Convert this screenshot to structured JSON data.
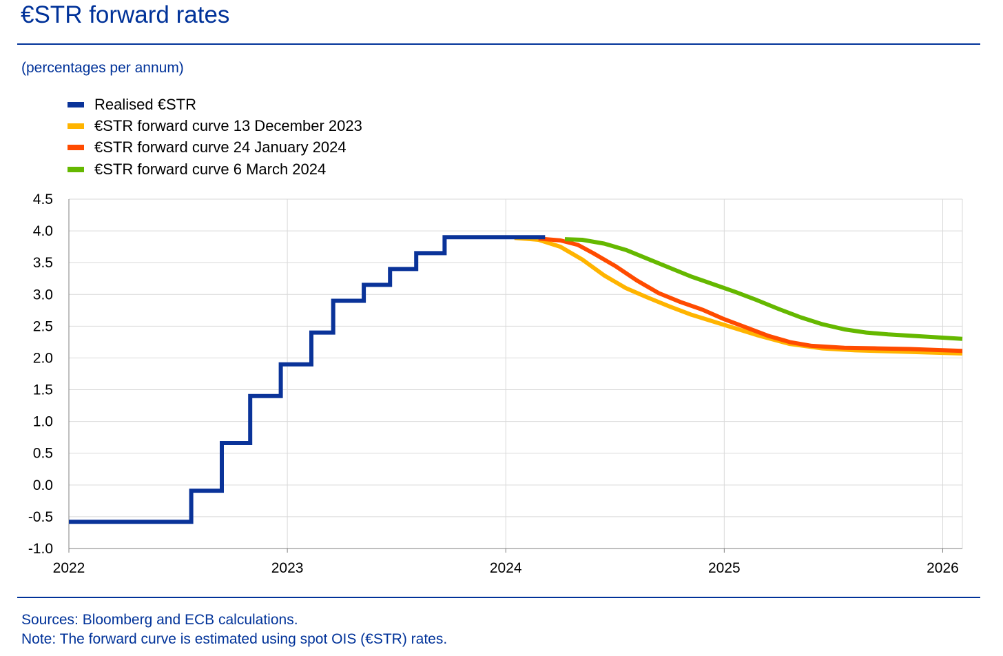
{
  "title": "€STR forward rates",
  "subtitle": "(percentages per annum)",
  "footer": {
    "sources": "Sources: Bloomberg and ECB calculations.",
    "note": "Note: The forward curve is estimated using spot OIS (€STR) rates."
  },
  "legend": [
    {
      "label": "Realised €STR",
      "color": "#0a3399"
    },
    {
      "label": "€STR forward curve 13 December 2023",
      "color": "#ffb400"
    },
    {
      "label": "€STR forward curve 24 January 2024",
      "color": "#ff4b00"
    },
    {
      "label": "€STR forward curve 6 March 2024",
      "color": "#65b800"
    }
  ],
  "chart_data": {
    "type": "line",
    "xlim": [
      2022.0,
      2026.09
    ],
    "ylim": [
      -1.0,
      4.5
    ],
    "xticks": [
      2022,
      2023,
      2024,
      2025,
      2026
    ],
    "xtick_labels": [
      "2022",
      "2023",
      "2024",
      "2025",
      "2026"
    ],
    "yticks": [
      -1.0,
      -0.5,
      0.0,
      0.5,
      1.0,
      1.5,
      2.0,
      2.5,
      3.0,
      3.5,
      4.0,
      4.5
    ],
    "ytick_labels": [
      "-1.0",
      "-0.5",
      "0.0",
      "0.5",
      "1.0",
      "1.5",
      "2.0",
      "2.5",
      "3.0",
      "3.5",
      "4.0",
      "4.5"
    ],
    "grid": true,
    "series": [
      {
        "name": "Realised €STR",
        "color": "#0a3399",
        "step": true,
        "points": [
          [
            2022.0,
            -0.58
          ],
          [
            2022.56,
            -0.58
          ],
          [
            2022.56,
            -0.09
          ],
          [
            2022.7,
            -0.09
          ],
          [
            2022.7,
            0.66
          ],
          [
            2022.83,
            0.66
          ],
          [
            2022.83,
            1.4
          ],
          [
            2022.97,
            1.4
          ],
          [
            2022.97,
            1.9
          ],
          [
            2023.11,
            1.9
          ],
          [
            2023.11,
            2.4
          ],
          [
            2023.21,
            2.4
          ],
          [
            2023.21,
            2.9
          ],
          [
            2023.35,
            2.9
          ],
          [
            2023.35,
            3.15
          ],
          [
            2023.47,
            3.15
          ],
          [
            2023.47,
            3.4
          ],
          [
            2023.59,
            3.4
          ],
          [
            2023.59,
            3.65
          ],
          [
            2023.72,
            3.65
          ],
          [
            2023.72,
            3.9
          ],
          [
            2024.18,
            3.9
          ]
        ]
      },
      {
        "name": "€STR forward curve 13 December 2023",
        "color": "#ffb400",
        "points": [
          [
            2024.04,
            3.89
          ],
          [
            2024.15,
            3.86
          ],
          [
            2024.25,
            3.75
          ],
          [
            2024.35,
            3.55
          ],
          [
            2024.45,
            3.3
          ],
          [
            2024.55,
            3.1
          ],
          [
            2024.65,
            2.95
          ],
          [
            2024.75,
            2.81
          ],
          [
            2024.85,
            2.68
          ],
          [
            2025.0,
            2.52
          ],
          [
            2025.15,
            2.36
          ],
          [
            2025.3,
            2.22
          ],
          [
            2025.45,
            2.15
          ],
          [
            2025.6,
            2.12
          ],
          [
            2025.8,
            2.1
          ],
          [
            2026.0,
            2.08
          ],
          [
            2026.09,
            2.07
          ]
        ]
      },
      {
        "name": "€STR forward curve 24 January 2024",
        "color": "#ff4b00",
        "points": [
          [
            2024.15,
            3.88
          ],
          [
            2024.25,
            3.85
          ],
          [
            2024.33,
            3.78
          ],
          [
            2024.4,
            3.65
          ],
          [
            2024.5,
            3.45
          ],
          [
            2024.6,
            3.22
          ],
          [
            2024.7,
            3.02
          ],
          [
            2024.8,
            2.88
          ],
          [
            2024.9,
            2.76
          ],
          [
            2025.0,
            2.61
          ],
          [
            2025.1,
            2.48
          ],
          [
            2025.2,
            2.35
          ],
          [
            2025.3,
            2.25
          ],
          [
            2025.4,
            2.19
          ],
          [
            2025.55,
            2.16
          ],
          [
            2025.7,
            2.15
          ],
          [
            2025.85,
            2.14
          ],
          [
            2026.09,
            2.11
          ]
        ]
      },
      {
        "name": "€STR forward curve 6 March 2024",
        "color": "#65b800",
        "points": [
          [
            2024.27,
            3.87
          ],
          [
            2024.35,
            3.86
          ],
          [
            2024.45,
            3.8
          ],
          [
            2024.55,
            3.7
          ],
          [
            2024.65,
            3.56
          ],
          [
            2024.75,
            3.42
          ],
          [
            2024.85,
            3.28
          ],
          [
            2024.95,
            3.16
          ],
          [
            2025.05,
            3.04
          ],
          [
            2025.15,
            2.91
          ],
          [
            2025.25,
            2.77
          ],
          [
            2025.35,
            2.64
          ],
          [
            2025.45,
            2.53
          ],
          [
            2025.55,
            2.45
          ],
          [
            2025.65,
            2.4
          ],
          [
            2025.75,
            2.37
          ],
          [
            2025.9,
            2.34
          ],
          [
            2026.09,
            2.3
          ]
        ]
      }
    ]
  }
}
